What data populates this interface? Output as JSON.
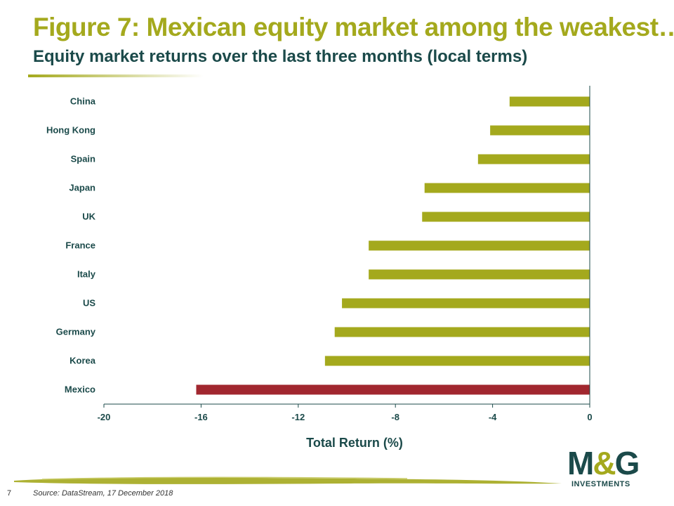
{
  "header": {
    "title": "Figure 7: Mexican equity market among the weakest…",
    "subtitle": "Equity market returns over the last three months (local terms)"
  },
  "footer": {
    "page_number": "7",
    "source": "Source: DataStream, 17 December 2018"
  },
  "logo": {
    "main_left": "M",
    "main_amp": "&",
    "main_right": "G",
    "sub": "INVESTMENTS"
  },
  "colors": {
    "accent_olive": "#a4a91d",
    "dark_teal": "#1b4a4a",
    "highlight_red": "#a1272f"
  },
  "chart_data": {
    "type": "bar",
    "orientation": "horizontal",
    "categories": [
      "China",
      "Hong Kong",
      "Spain",
      "Japan",
      "UK",
      "France",
      "Italy",
      "US",
      "Germany",
      "Korea",
      "Mexico"
    ],
    "values": [
      -3.3,
      -4.1,
      -4.6,
      -6.8,
      -6.9,
      -9.1,
      -9.1,
      -10.2,
      -10.5,
      -10.9,
      -16.2
    ],
    "highlight": "Mexico",
    "xlabel": "Total Return (%)",
    "ylabel": "",
    "xlim": [
      -20,
      0
    ],
    "xticks": [
      "-20",
      "-16",
      "-12",
      "-8",
      "-4",
      "0"
    ],
    "grid": false,
    "legend": "none"
  }
}
